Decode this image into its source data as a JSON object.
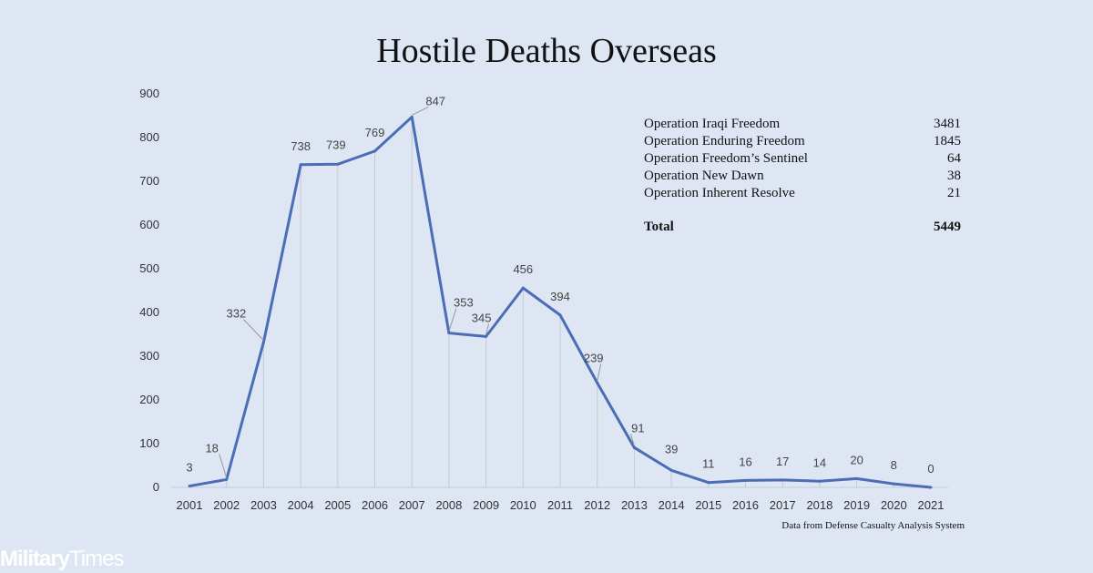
{
  "chart_data": {
    "type": "line",
    "title": "Hostile Deaths Overseas",
    "categories": [
      "2001",
      "2002",
      "2003",
      "2004",
      "2005",
      "2006",
      "2007",
      "2008",
      "2009",
      "2010",
      "2011",
      "2012",
      "2013",
      "2014",
      "2015",
      "2016",
      "2017",
      "2018",
      "2019",
      "2020",
      "2021"
    ],
    "values": [
      3,
      18,
      332,
      738,
      739,
      769,
      847,
      353,
      345,
      456,
      394,
      239,
      91,
      39,
      11,
      16,
      17,
      14,
      20,
      8,
      0
    ],
    "data_labels": [
      "3",
      "18",
      "332",
      "738",
      "739",
      "769",
      "847",
      "353",
      "345",
      "456",
      "394",
      "239",
      "91",
      "39",
      "11",
      "16",
      "17",
      "14",
      "20",
      "8",
      "0"
    ],
    "yticks": [
      "0",
      "100",
      "200",
      "300",
      "400",
      "500",
      "600",
      "700",
      "800",
      "900"
    ],
    "ylim": [
      0,
      900
    ],
    "xlabel": "",
    "ylabel": "",
    "color": "#4a6db5",
    "annotation_table": {
      "rows": [
        {
          "name": "Operation Iraqi Freedom",
          "value": "3481"
        },
        {
          "name": "Operation Enduring Freedom",
          "value": "1845"
        },
        {
          "name": "Operation Freedom’s Sentinel",
          "value": "64"
        },
        {
          "name": "Operation New Dawn",
          "value": "38"
        },
        {
          "name": "Operation Inherent Resolve",
          "value": "21"
        }
      ],
      "total_label": "Total",
      "total_value": "5449"
    },
    "source": "Data from Defense Casualty Analysis System"
  },
  "brand": {
    "part1": "Military",
    "part2": "Times"
  }
}
